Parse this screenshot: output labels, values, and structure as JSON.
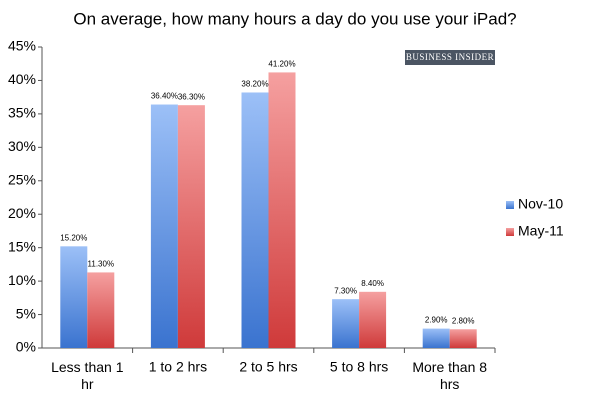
{
  "chart_data": {
    "type": "bar",
    "title": "On average, how many hours a day do you use your iPad?",
    "watermark": "BUSINESS INSIDER",
    "categories": [
      "Less than 1 hr",
      "1 to 2 hrs",
      "2 to 5 hrs",
      "5 to 8 hrs",
      "More than 8 hrs"
    ],
    "series": [
      {
        "name": "Nov-10",
        "color": "#5f93e0",
        "values": [
          15.2,
          36.4,
          38.2,
          7.3,
          2.9
        ],
        "value_labels": [
          "15.20%",
          "36.40%",
          "38.20%",
          "7.30%",
          "2.90%"
        ]
      },
      {
        "name": "May-11",
        "color": "#e05a5a",
        "values": [
          11.3,
          36.3,
          41.2,
          8.4,
          2.8
        ],
        "value_labels": [
          "11.30%",
          "36.30%",
          "41.20%",
          "8.40%",
          "2.80%"
        ]
      }
    ],
    "ylim": [
      0,
      45
    ],
    "yticks": [
      {
        "value": 0,
        "label": "0%"
      },
      {
        "value": 5,
        "label": "5%"
      },
      {
        "value": 10,
        "label": "10%"
      },
      {
        "value": 15,
        "label": "15%"
      },
      {
        "value": 20,
        "label": "20%"
      },
      {
        "value": 25,
        "label": "25%"
      },
      {
        "value": 30,
        "label": "30%"
      },
      {
        "value": 35,
        "label": "35%"
      },
      {
        "value": 40,
        "label": "40%"
      },
      {
        "value": 45,
        "label": "45%"
      }
    ],
    "grid": false,
    "legend": "right"
  }
}
